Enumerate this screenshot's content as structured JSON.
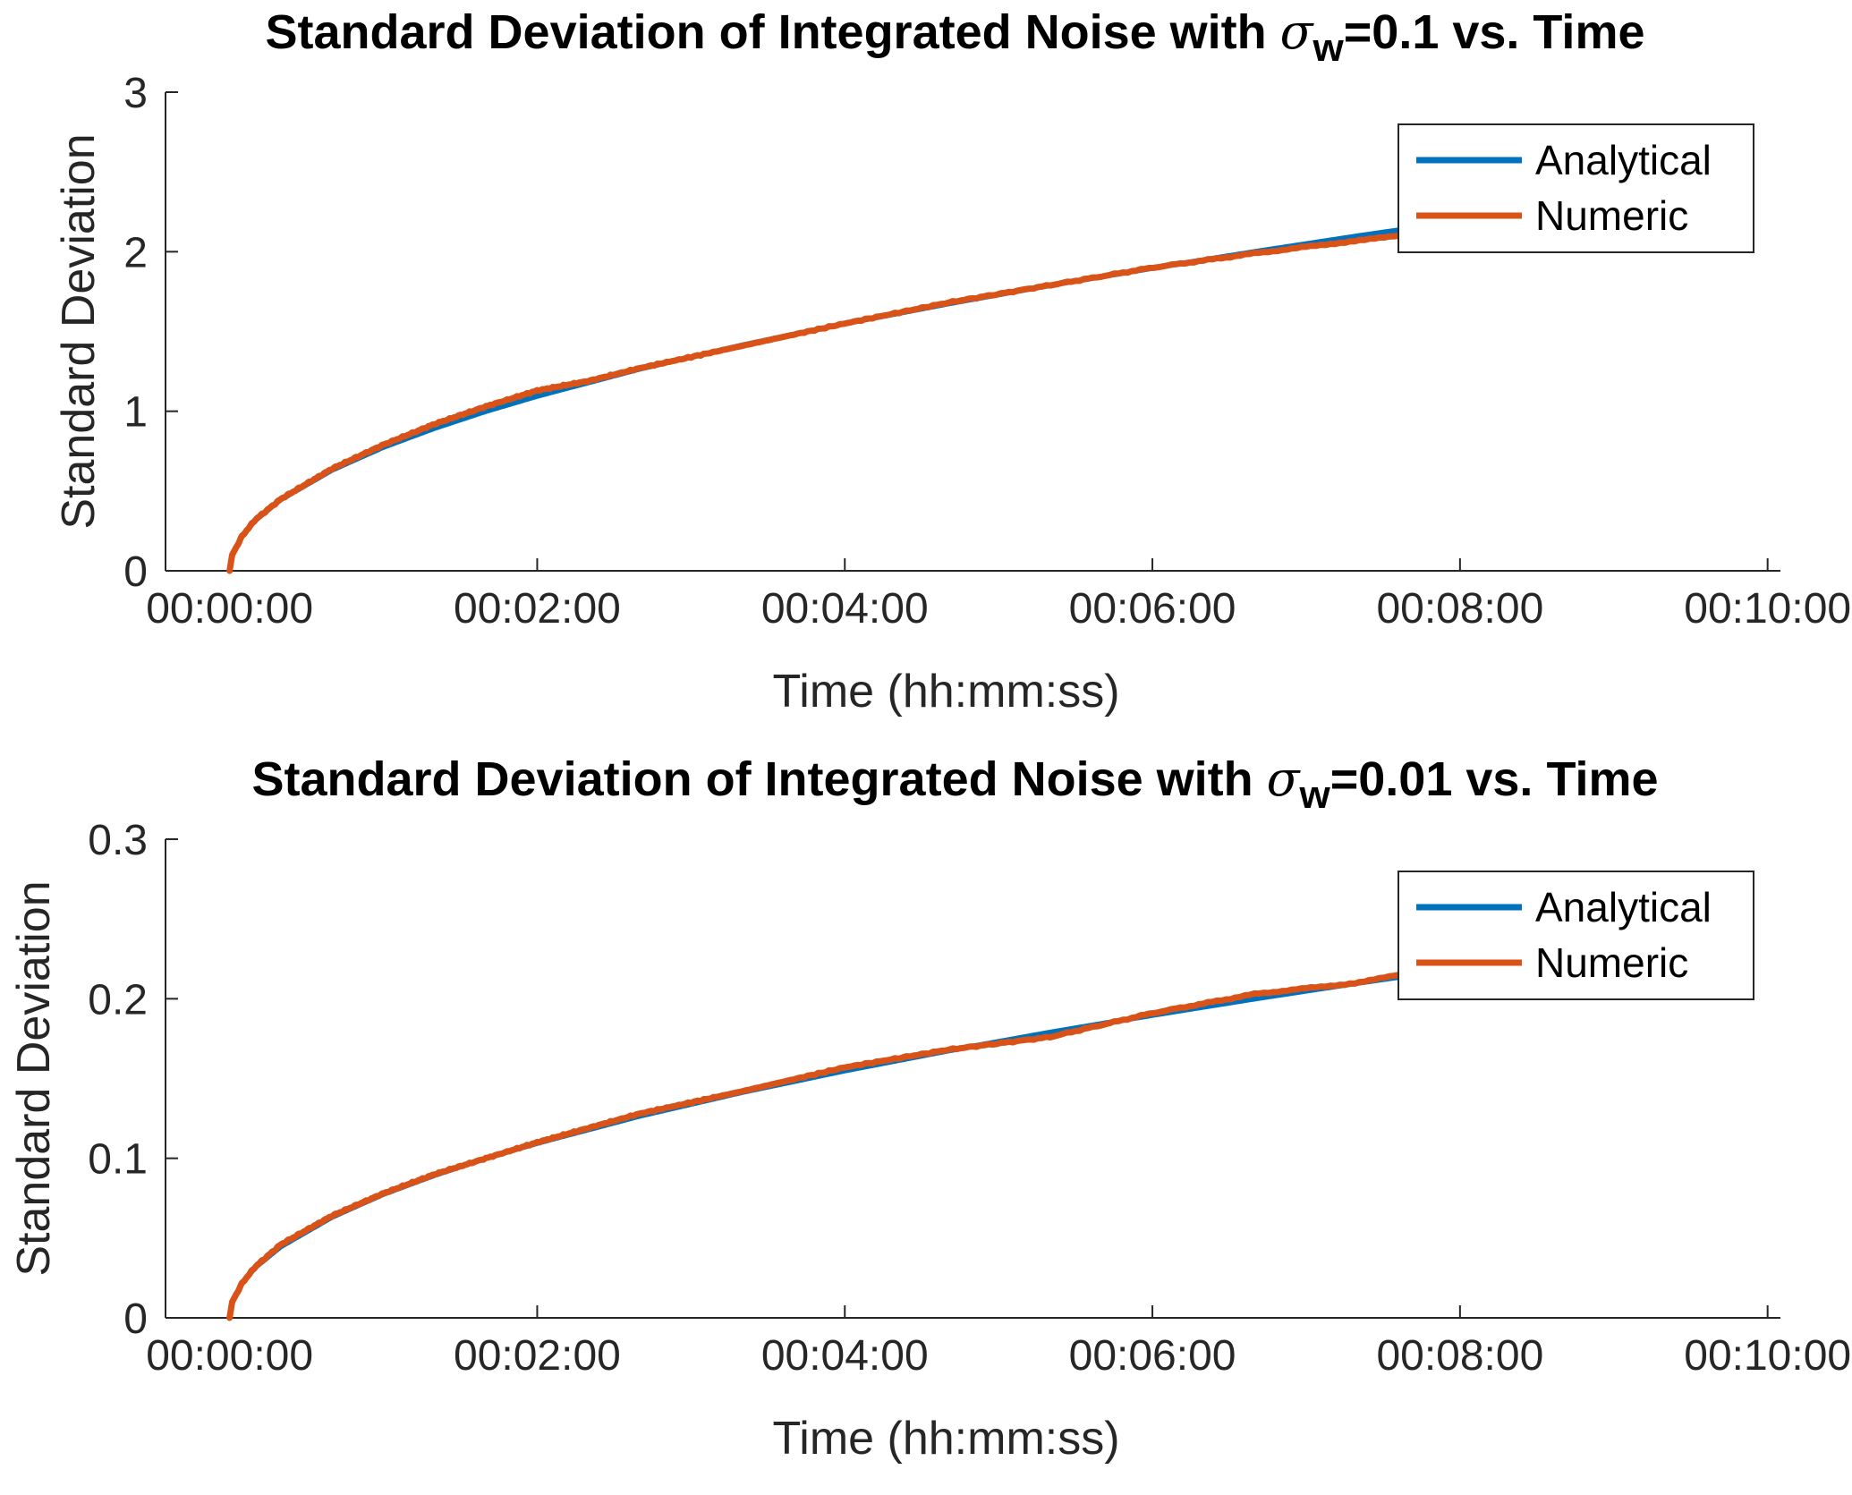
{
  "chart_data": [
    {
      "type": "line",
      "title_prefix": "Standard Deviation of Integrated Noise with ",
      "title_symbol": "σ",
      "title_subscript": "w",
      "title_suffix": "=0.1 vs. Time",
      "xlabel": "Time (hh:mm:ss)",
      "ylabel": "Standard Deviation",
      "x_unit": "seconds",
      "xlim": [
        -25,
        605
      ],
      "ylim": [
        0,
        3
      ],
      "xticks": [
        0,
        120,
        240,
        360,
        480,
        600
      ],
      "xtick_labels": [
        "00:00:00",
        "00:02:00",
        "00:04:00",
        "00:06:00",
        "00:08:00",
        "00:10:00"
      ],
      "yticks": [
        0,
        1,
        2,
        3
      ],
      "ytick_labels": [
        "0",
        "1",
        "2",
        "3"
      ],
      "grid": false,
      "legend": "top-right",
      "series": [
        {
          "name": "Analytical",
          "color": "#0072BD",
          "x": [
            0,
            1,
            5,
            10,
            20,
            40,
            60,
            80,
            100,
            120,
            160,
            200,
            240,
            280,
            320,
            360,
            400,
            440,
            480
          ],
          "y": [
            0,
            0.1,
            0.22,
            0.316,
            0.447,
            0.632,
            0.775,
            0.894,
            1.0,
            1.095,
            1.265,
            1.414,
            1.549,
            1.673,
            1.789,
            1.897,
            2.0,
            2.098,
            2.191
          ]
        },
        {
          "name": "Numeric",
          "color": "#D95319",
          "x": [
            0,
            1,
            5,
            10,
            20,
            40,
            60,
            80,
            100,
            120,
            140,
            160,
            200,
            240,
            280,
            320,
            360,
            400,
            440,
            480
          ],
          "y": [
            0,
            0.1,
            0.22,
            0.32,
            0.45,
            0.64,
            0.79,
            0.92,
            1.03,
            1.13,
            1.19,
            1.27,
            1.41,
            1.55,
            1.68,
            1.79,
            1.9,
            1.99,
            2.07,
            2.14
          ]
        }
      ]
    },
    {
      "type": "line",
      "title_prefix": "Standard Deviation of Integrated Noise with ",
      "title_symbol": "σ",
      "title_subscript": "w",
      "title_suffix": "=0.01 vs. Time",
      "xlabel": "Time (hh:mm:ss)",
      "ylabel": "Standard Deviation",
      "x_unit": "seconds",
      "xlim": [
        -25,
        605
      ],
      "ylim": [
        0,
        0.3
      ],
      "xticks": [
        0,
        120,
        240,
        360,
        480,
        600
      ],
      "xtick_labels": [
        "00:00:00",
        "00:02:00",
        "00:04:00",
        "00:06:00",
        "00:08:00",
        "00:10:00"
      ],
      "yticks": [
        0,
        0.1,
        0.2,
        0.3
      ],
      "ytick_labels": [
        "0",
        "0.1",
        "0.2",
        "0.3"
      ],
      "grid": false,
      "legend": "top-right",
      "series": [
        {
          "name": "Analytical",
          "color": "#0072BD",
          "x": [
            0,
            1,
            5,
            10,
            20,
            40,
            60,
            80,
            100,
            120,
            160,
            200,
            240,
            280,
            320,
            360,
            400,
            440,
            480
          ],
          "y": [
            0,
            0.01,
            0.022,
            0.0316,
            0.0447,
            0.0632,
            0.0775,
            0.0894,
            0.1,
            0.1095,
            0.1265,
            0.1414,
            0.1549,
            0.1673,
            0.1789,
            0.1897,
            0.2,
            0.2098,
            0.2191
          ]
        },
        {
          "name": "Numeric",
          "color": "#D95319",
          "x": [
            0,
            1,
            5,
            10,
            20,
            40,
            60,
            80,
            100,
            120,
            160,
            200,
            240,
            280,
            320,
            360,
            400,
            440,
            480
          ],
          "y": [
            0,
            0.01,
            0.022,
            0.032,
            0.046,
            0.064,
            0.078,
            0.09,
            0.1,
            0.11,
            0.128,
            0.142,
            0.157,
            0.168,
            0.176,
            0.191,
            0.203,
            0.21,
            0.222
          ]
        }
      ]
    }
  ]
}
